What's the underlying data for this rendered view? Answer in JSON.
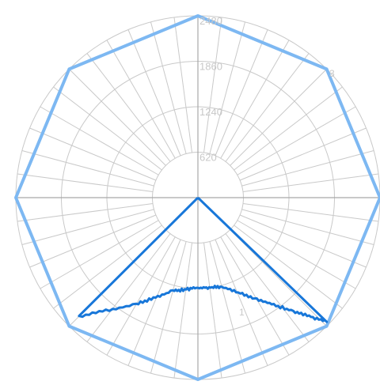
{
  "chart_data": {
    "type": "radar",
    "r_ticks": [
      "620",
      "1240",
      "1860",
      "2480"
    ],
    "r_max": 2480,
    "grid": true,
    "angle_spokes": 48,
    "point_labels": [
      "3",
      "1"
    ],
    "series": [
      {
        "color": "#7db8f2",
        "points": [
          {
            "angle_deg": 90,
            "r": 2480
          },
          {
            "angle_deg": 45,
            "r": 2480
          },
          {
            "angle_deg": 0,
            "r": 2480
          },
          {
            "angle_deg": -45,
            "r": 2480
          },
          {
            "angle_deg": -90,
            "r": 2480
          },
          {
            "angle_deg": -135,
            "r": 2480
          },
          {
            "angle_deg": 180,
            "r": 2480
          },
          {
            "angle_deg": 135,
            "r": 2480
          }
        ]
      },
      {
        "color": "#1877d9",
        "points": [
          {
            "angle_deg": 0,
            "r": 0
          },
          {
            "angle_deg": -44,
            "r": 2440
          },
          {
            "angle_deg": -50,
            "r": 2020
          },
          {
            "angle_deg": -60,
            "r": 1600
          },
          {
            "angle_deg": -75,
            "r": 1260
          },
          {
            "angle_deg": -90,
            "r": 1230
          },
          {
            "angle_deg": -105,
            "r": 1320
          },
          {
            "angle_deg": -120,
            "r": 1680
          },
          {
            "angle_deg": -135,
            "r": 2290
          },
          {
            "angle_deg": -180,
            "r": 0
          }
        ]
      }
    ]
  }
}
